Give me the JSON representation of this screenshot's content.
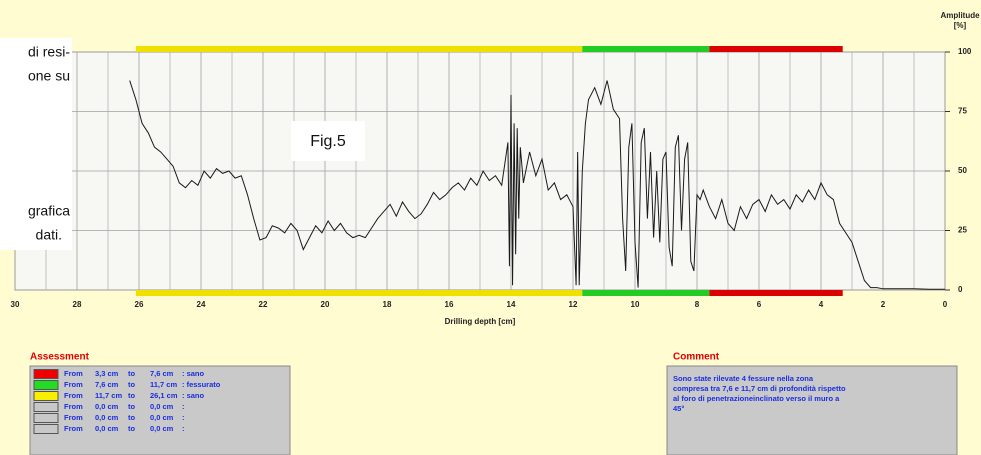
{
  "chart_data": {
    "type": "line",
    "annotation": "Fig.5",
    "x_label": "Drilling depth [cm]",
    "y_label": "Amplitude",
    "y_unit": "[%]",
    "color": "#1a1a1a",
    "grid": true,
    "xlim": [
      30,
      0
    ],
    "ylim": [
      0,
      100
    ],
    "xticks": [
      30,
      28,
      26,
      24,
      22,
      20,
      18,
      16,
      14,
      12,
      10,
      8,
      6,
      4,
      2,
      0
    ],
    "xminorticks": [
      29,
      27,
      25,
      23,
      21,
      19,
      17,
      15,
      13,
      11,
      9,
      7,
      5,
      3,
      1
    ],
    "yticks": [
      0,
      25,
      50,
      75,
      100
    ],
    "bands": [
      {
        "from": 26.1,
        "to": 11.7,
        "color": "#f0e000"
      },
      {
        "from": 11.7,
        "to": 7.6,
        "color": "#22cc22"
      },
      {
        "from": 7.6,
        "to": 3.3,
        "color": "#dd0000"
      }
    ],
    "x": [
      26.3,
      26.1,
      25.9,
      25.7,
      25.5,
      25.3,
      25.1,
      24.9,
      24.7,
      24.5,
      24.3,
      24.1,
      23.9,
      23.7,
      23.5,
      23.3,
      23.1,
      22.9,
      22.7,
      22.5,
      22.3,
      22.1,
      21.9,
      21.7,
      21.5,
      21.3,
      21.1,
      20.9,
      20.7,
      20.5,
      20.3,
      20.1,
      19.9,
      19.7,
      19.5,
      19.3,
      19.1,
      18.9,
      18.7,
      18.5,
      18.3,
      18.1,
      17.9,
      17.7,
      17.5,
      17.3,
      17.1,
      16.9,
      16.7,
      16.5,
      16.3,
      16.1,
      15.9,
      15.7,
      15.5,
      15.3,
      15.1,
      14.9,
      14.7,
      14.5,
      14.3,
      14.1,
      14.05,
      14.0,
      13.95,
      13.9,
      13.85,
      13.8,
      13.75,
      13.7,
      13.6,
      13.4,
      13.2,
      13.0,
      12.8,
      12.6,
      12.4,
      12.2,
      12.0,
      11.9,
      11.85,
      11.8,
      11.7,
      11.6,
      11.5,
      11.3,
      11.1,
      10.9,
      10.7,
      10.5,
      10.4,
      10.3,
      10.2,
      10.1,
      10.0,
      9.9,
      9.8,
      9.7,
      9.6,
      9.5,
      9.4,
      9.3,
      9.2,
      9.1,
      9.0,
      8.9,
      8.8,
      8.7,
      8.6,
      8.5,
      8.4,
      8.3,
      8.2,
      8.1,
      8.0,
      7.9,
      7.8,
      7.6,
      7.4,
      7.2,
      7.0,
      6.8,
      6.6,
      6.4,
      6.2,
      6.0,
      5.8,
      5.6,
      5.4,
      5.2,
      5.0,
      4.8,
      4.6,
      4.4,
      4.2,
      4.0,
      3.8,
      3.6,
      3.4,
      3.2,
      3.0,
      2.8,
      2.6,
      2.4,
      2.2,
      2.0,
      1.5,
      1.0,
      0.5,
      0.0
    ],
    "values": [
      88,
      80,
      70,
      66,
      60,
      58,
      55,
      52,
      45,
      43,
      46,
      44,
      50,
      47,
      51,
      49,
      50,
      47,
      48,
      40,
      30,
      21,
      22,
      27,
      26,
      24,
      28,
      25,
      17,
      22,
      27,
      24,
      29,
      25,
      28,
      24,
      22,
      23,
      22,
      26,
      30,
      33,
      36,
      31,
      37,
      33,
      30,
      32,
      36,
      41,
      38,
      40,
      43,
      45,
      42,
      47,
      44,
      50,
      46,
      48,
      44,
      62,
      10,
      82,
      2,
      70,
      15,
      68,
      30,
      60,
      45,
      58,
      48,
      55,
      42,
      45,
      38,
      40,
      35,
      2,
      58,
      2,
      50,
      70,
      80,
      85,
      78,
      88,
      76,
      72,
      30,
      8,
      60,
      70,
      20,
      1,
      62,
      68,
      30,
      58,
      22,
      50,
      20,
      55,
      58,
      18,
      10,
      60,
      65,
      25,
      55,
      62,
      12,
      8,
      40,
      38,
      42,
      35,
      30,
      38,
      28,
      25,
      35,
      30,
      36,
      38,
      33,
      40,
      36,
      38,
      34,
      40,
      37,
      42,
      38,
      45,
      40,
      38,
      28,
      24,
      20,
      12,
      4,
      1,
      1,
      0.5,
      0.5,
      0.5,
      0.3,
      0.3
    ]
  },
  "overlay_text": [
    "di resi-",
    "one su",
    "grafica",
    "dati."
  ],
  "assessment": {
    "title": "Assessment",
    "rows": [
      {
        "color": "#ee0000",
        "from_label": "From",
        "from": "3,3 cm",
        "to_label": "to",
        "to": "7,6 cm",
        "result": ": sano"
      },
      {
        "color": "#22dd22",
        "from_label": "From",
        "from": "7,6 cm",
        "to_label": "to",
        "to": "11,7 cm",
        "result": ": fessurato"
      },
      {
        "color": "#f8f000",
        "from_label": "From",
        "from": "11,7 cm",
        "to_label": "to",
        "to": "26,1 cm",
        "result": ": sano"
      },
      {
        "color": "#c8c8c8",
        "from_label": "From",
        "from": "0,0 cm",
        "to_label": "to",
        "to": "0,0 cm",
        "result": ":"
      },
      {
        "color": "#c8c8c8",
        "from_label": "From",
        "from": "0,0 cm",
        "to_label": "to",
        "to": "0,0 cm",
        "result": ":"
      },
      {
        "color": "#c8c8c8",
        "from_label": "From",
        "from": "0,0 cm",
        "to_label": "to",
        "to": "0,0 cm",
        "result": ":"
      }
    ]
  },
  "comment": {
    "title": "Comment",
    "lines": [
      "Sono state rilevate 4 fessure nella zona",
      "compresa tra 7,6 e 11,7 cm di profondità rispetto",
      "al foro di penetrazioneinclinato verso il muro a",
      "45°"
    ]
  }
}
